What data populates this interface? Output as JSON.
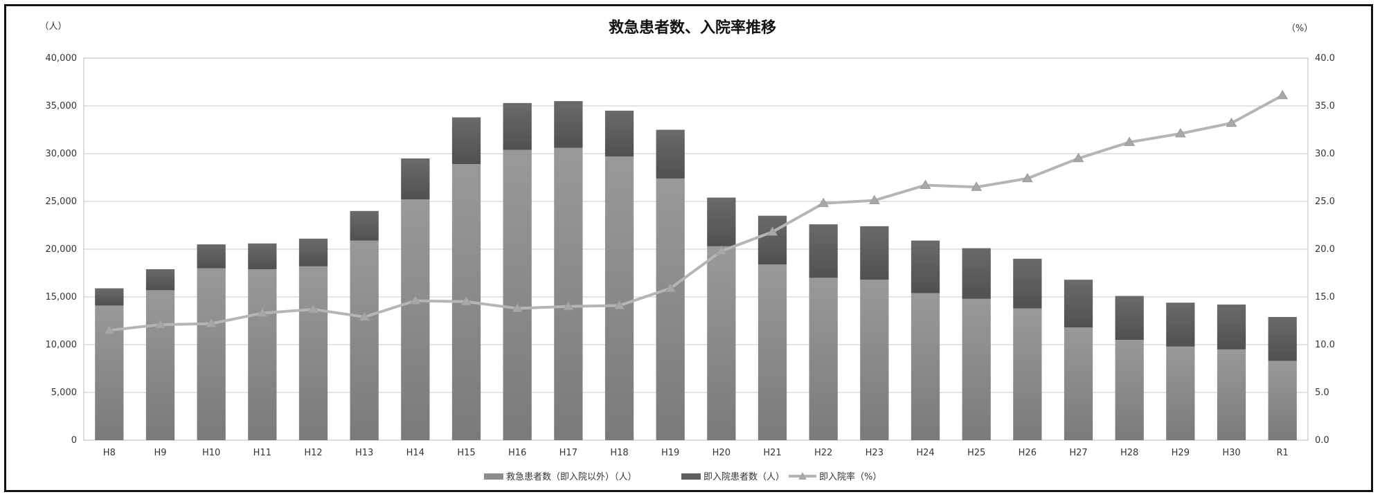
{
  "chart_data": {
    "type": "bar+line",
    "title": "救急患者数、入院率推移",
    "y_left_unit": "（人）",
    "y_right_unit": "（%）",
    "categories": [
      "H8",
      "H9",
      "H10",
      "H11",
      "H12",
      "H13",
      "H14",
      "H15",
      "H16",
      "H17",
      "H18",
      "H19",
      "H20",
      "H21",
      "H22",
      "H23",
      "H24",
      "H25",
      "H26",
      "H27",
      "H28",
      "H29",
      "H30",
      "R1"
    ],
    "ylim_left": [
      0,
      40000
    ],
    "ylim_right": [
      0,
      40
    ],
    "y_left_ticks": [
      "0",
      "5,000",
      "10,000",
      "15,000",
      "20,000",
      "25,000",
      "30,000",
      "35,000",
      "40,000"
    ],
    "y_right_ticks": [
      "0.0",
      "5.0",
      "10.0",
      "15.0",
      "20.0",
      "25.0",
      "30.0",
      "35.0",
      "40.0"
    ],
    "grid": true,
    "legend_position": "bottom",
    "series": [
      {
        "name": "救急患者数（即入院以外）（人）",
        "kind": "bar-stacked",
        "color": "#8c8c8c",
        "values": [
          14100,
          15700,
          18000,
          17900,
          18200,
          20900,
          25200,
          28900,
          30400,
          30600,
          29700,
          27400,
          20300,
          18400,
          17000,
          16800,
          15400,
          14800,
          13800,
          11800,
          10500,
          9800,
          9500,
          8300
        ]
      },
      {
        "name": "即入院患者数（人）",
        "kind": "bar-stacked",
        "color": "#5f5f5f",
        "values": [
          1800,
          2200,
          2500,
          2700,
          2900,
          3100,
          4300,
          4900,
          4900,
          4900,
          4800,
          5100,
          5100,
          5100,
          5600,
          5600,
          5500,
          5300,
          5200,
          5000,
          4600,
          4600,
          4700,
          4600
        ]
      },
      {
        "name": "即入院率（%）",
        "kind": "line",
        "axis": "right",
        "color": "#b3b3b3",
        "values": [
          11.5,
          12.1,
          12.2,
          13.3,
          13.7,
          12.9,
          14.6,
          14.5,
          13.8,
          14.0,
          14.1,
          15.9,
          19.8,
          21.8,
          24.8,
          25.1,
          26.7,
          26.5,
          27.4,
          29.5,
          31.2,
          32.1,
          33.2,
          36.1
        ]
      }
    ]
  }
}
